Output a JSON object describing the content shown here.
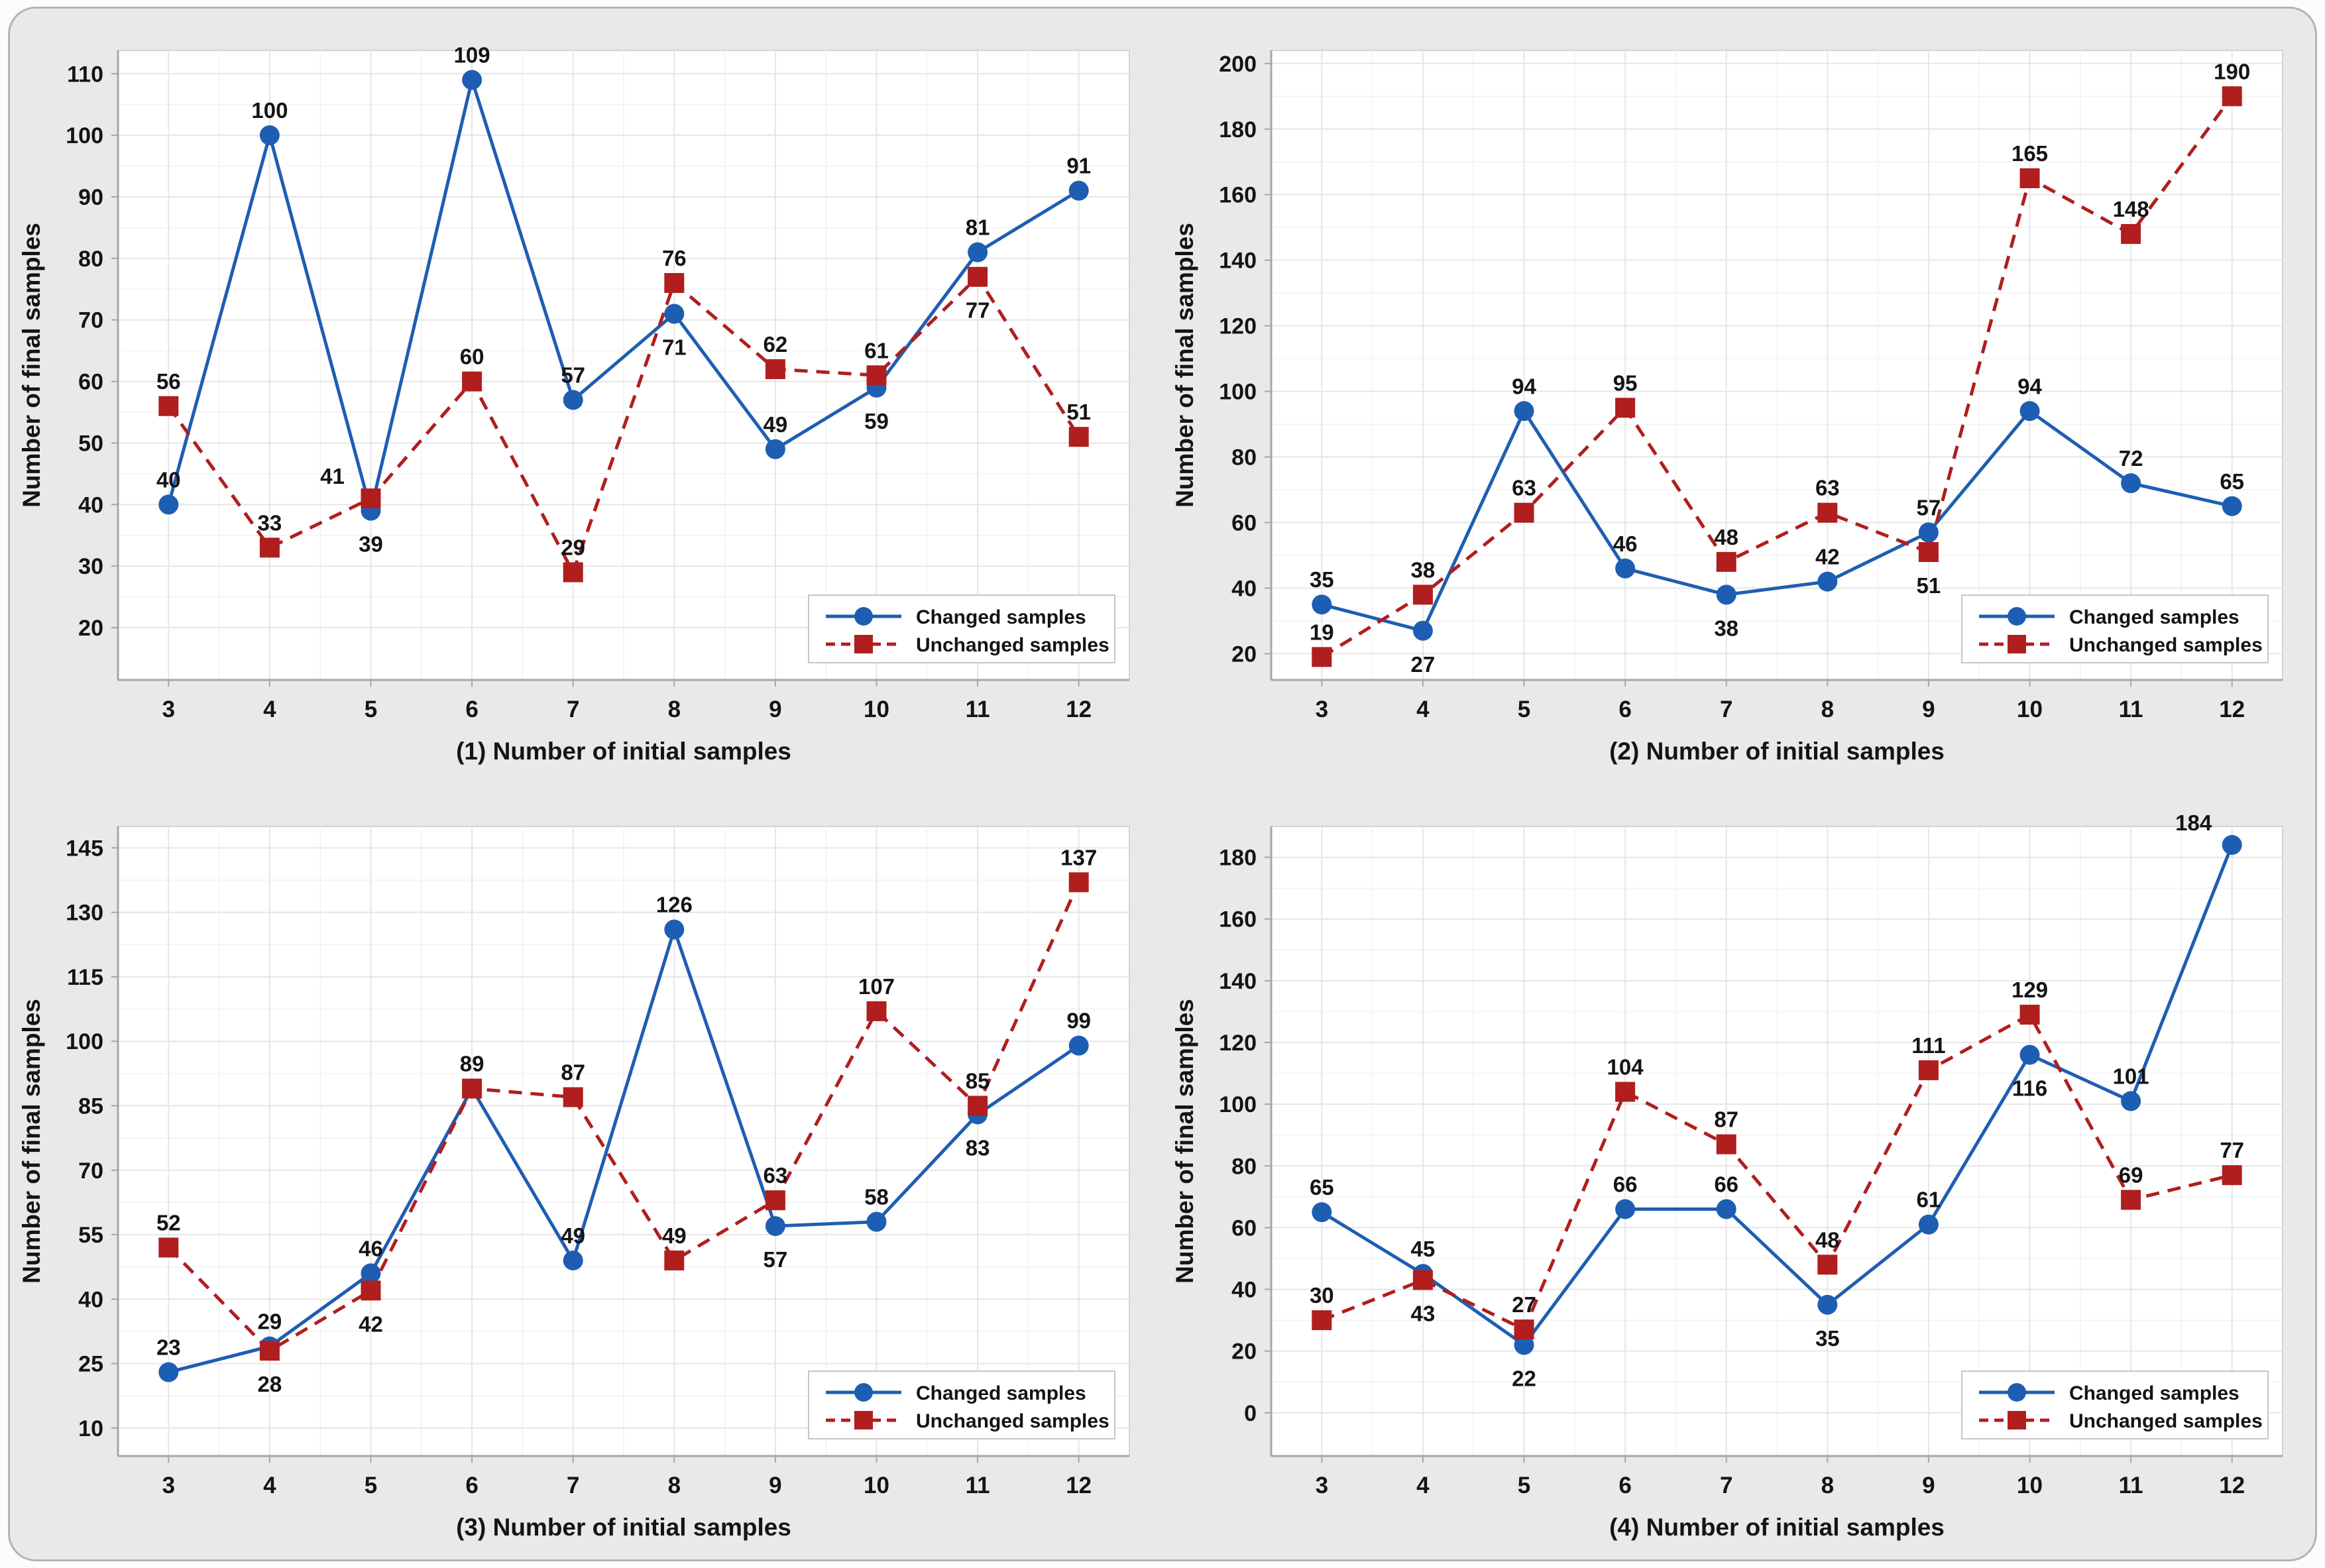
{
  "figure": {
    "ylabel": "Number of final samples",
    "background": "#e9e9e9",
    "plot_bg": "#ffffff",
    "frame_border": "#b4b4b4",
    "plot_border": "#d3d3d3",
    "grid_major": "#e6e6e6",
    "grid_minor": "#f2f2f2",
    "axis_color": "#a6a6a6",
    "text_color": "#141414",
    "changed_color": "#1e5eb2",
    "unchanged_color": "#b01e1e",
    "legend": {
      "items": [
        {
          "label": "Changed samples",
          "marker": "circle",
          "line": "solid",
          "color": "#1e5eb2"
        },
        {
          "label": "Unchanged samples",
          "marker": "square",
          "line": "dashed",
          "color": "#b01e1e"
        }
      ]
    }
  },
  "chart_data": [
    {
      "type": "line",
      "xlabel": "(1) Number of initial samples",
      "ylabel": "Number of final samples",
      "x": [
        3,
        4,
        5,
        6,
        7,
        8,
        9,
        10,
        11,
        12
      ],
      "yticks": [
        20,
        30,
        40,
        50,
        60,
        70,
        80,
        90,
        100,
        110
      ],
      "ymap": [
        11.5,
        113.8
      ],
      "grid": true,
      "legend_position": "bottom-right",
      "series": [
        {
          "name": "Changed samples",
          "color": "#1e5eb2",
          "marker": "circle",
          "line": "solid",
          "values": [
            40,
            100,
            39,
            109,
            57,
            71,
            49,
            59,
            81,
            91
          ],
          "label_pos": [
            "a",
            "a",
            "b",
            "a",
            "a",
            "b",
            "a",
            "b",
            "a",
            "a"
          ]
        },
        {
          "name": "Unchanged samples",
          "color": "#b01e1e",
          "marker": "square",
          "line": "dashed",
          "values": [
            56,
            33,
            41,
            60,
            29,
            76,
            62,
            61,
            77,
            51
          ],
          "label_pos": [
            "a",
            "a",
            "al",
            "a",
            "a",
            "a",
            "a",
            "a",
            "b",
            "a"
          ]
        }
      ]
    },
    {
      "type": "line",
      "xlabel": "(2) Number of initial samples",
      "ylabel": "Number of final samples",
      "x": [
        3,
        4,
        5,
        6,
        7,
        8,
        9,
        10,
        11,
        12
      ],
      "yticks": [
        20,
        40,
        60,
        80,
        100,
        120,
        140,
        160,
        180,
        200
      ],
      "ymap": [
        12,
        204
      ],
      "grid": true,
      "legend_position": "bottom-right",
      "series": [
        {
          "name": "Changed samples",
          "color": "#1e5eb2",
          "marker": "circle",
          "line": "solid",
          "values": [
            35,
            27,
            94,
            46,
            38,
            42,
            57,
            94,
            72,
            65
          ],
          "label_pos": [
            "a",
            "b",
            "a",
            "a",
            "b",
            "a",
            "a",
            "a",
            "a",
            "a"
          ]
        },
        {
          "name": "Unchanged samples",
          "color": "#b01e1e",
          "marker": "square",
          "line": "dashed",
          "values": [
            19,
            38,
            63,
            95,
            48,
            63,
            51,
            165,
            148,
            190
          ],
          "label_pos": [
            "a",
            "a",
            "a",
            "a",
            "a",
            "a",
            "b",
            "a",
            "a",
            "a"
          ]
        }
      ]
    },
    {
      "type": "line",
      "xlabel": "(3) Number of initial samples",
      "ylabel": "Number of final samples",
      "x": [
        3,
        4,
        5,
        6,
        7,
        8,
        9,
        10,
        11,
        12
      ],
      "yticks": [
        10,
        25,
        40,
        55,
        70,
        85,
        100,
        115,
        130,
        145
      ],
      "ymap": [
        3.5,
        150
      ],
      "grid": true,
      "legend_position": "bottom-right",
      "series": [
        {
          "name": "Changed samples",
          "color": "#1e5eb2",
          "marker": "circle",
          "line": "solid",
          "values": [
            23,
            29,
            46,
            89,
            49,
            126,
            57,
            58,
            83,
            99
          ],
          "label_pos": [
            "a",
            "a",
            "a",
            "none",
            "a",
            "a",
            "b",
            "a",
            "b",
            "a"
          ]
        },
        {
          "name": "Unchanged samples",
          "color": "#b01e1e",
          "marker": "square",
          "line": "dashed",
          "values": [
            52,
            28,
            42,
            89,
            87,
            49,
            63,
            107,
            85,
            137
          ],
          "label_pos": [
            "a",
            "b",
            "b",
            "a",
            "a",
            "a",
            "a",
            "a",
            "a",
            "a"
          ]
        }
      ]
    },
    {
      "type": "line",
      "xlabel": "(4) Number of initial samples",
      "ylabel": "Number of final samples",
      "x": [
        3,
        4,
        5,
        6,
        7,
        8,
        9,
        10,
        11,
        12
      ],
      "yticks": [
        0,
        20,
        40,
        60,
        80,
        100,
        120,
        140,
        160,
        180
      ],
      "ymap": [
        -14,
        190
      ],
      "grid": true,
      "legend_position": "bottom-right",
      "series": [
        {
          "name": "Changed samples",
          "color": "#1e5eb2",
          "marker": "circle",
          "line": "solid",
          "values": [
            65,
            45,
            22,
            66,
            66,
            35,
            61,
            116,
            101,
            184
          ],
          "label_pos": [
            "a",
            "a",
            "b",
            "a",
            "a",
            "b",
            "a",
            "b",
            "a",
            "al"
          ]
        },
        {
          "name": "Unchanged samples",
          "color": "#b01e1e",
          "marker": "square",
          "line": "dashed",
          "values": [
            30,
            43,
            27,
            104,
            87,
            48,
            111,
            129,
            69,
            77
          ],
          "label_pos": [
            "a",
            "b",
            "a",
            "a",
            "a",
            "a",
            "a",
            "a",
            "a",
            "a"
          ]
        }
      ]
    }
  ]
}
